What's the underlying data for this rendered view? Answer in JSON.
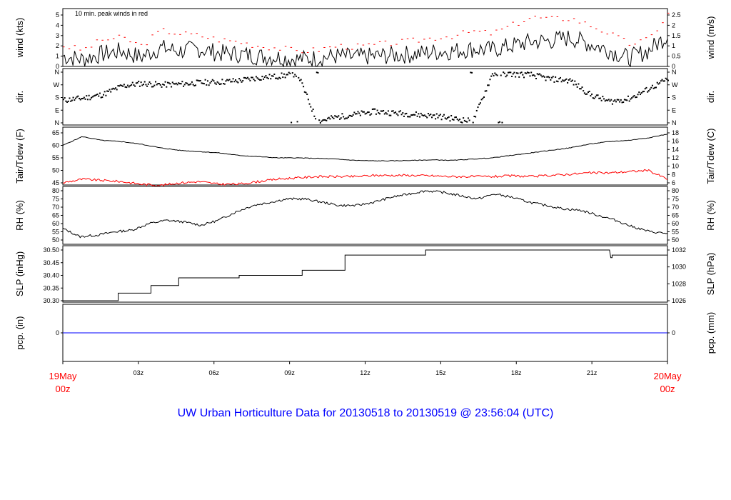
{
  "title": "UW Urban Horticulture Data for 20130518  to  20130519 @ 23:56:04  (UTC)",
  "colors": {
    "title": "#0000ff",
    "series_secondary": "#ff0000",
    "series_primary": "#000000",
    "precip": "#0000ff",
    "xend": "#ff0000"
  },
  "x_axis": {
    "ticks": [
      "03z",
      "06z",
      "09z",
      "12z",
      "15z",
      "18z",
      "21z"
    ],
    "start": {
      "line1": "19May",
      "line2": "00z"
    },
    "end": {
      "line1": "20May",
      "line2": "00z"
    }
  },
  "chart_data": [
    {
      "type": "line",
      "ylabel": "wind (kts)",
      "y2label": "wind (m/s)",
      "annotation": "10 min. peak winds in red",
      "ylim": [
        0,
        5.7
      ],
      "yticks": [
        "0",
        "1",
        "2",
        "3",
        "4",
        "5"
      ],
      "y2ticks": [
        "0",
        "0.5",
        "1",
        "1.5",
        "2",
        "2.5"
      ],
      "series": [
        {
          "values": [
            1.0,
            0.7,
            1.2,
            1.5,
            0.9,
            1.8,
            1.5,
            1.7,
            1.3,
            1.2,
            1.0,
            0.9,
            0.7,
            0.8,
            1.0,
            0.9,
            1.0,
            1.1,
            1.2,
            1.4,
            1.5,
            1.7,
            1.6,
            2.0,
            2.4,
            2.5,
            2.8,
            2.2,
            1.6,
            0.8,
            1.5,
            3.0
          ]
        },
        {
          "values": [
            2.0,
            1.6,
            2.6,
            2.8,
            2.0,
            3.5,
            3.2,
            3.0,
            2.6,
            2.4,
            2.0,
            1.8,
            1.5,
            1.6,
            2.0,
            1.9,
            2.1,
            2.3,
            2.5,
            2.8,
            3.0,
            3.4,
            3.2,
            4.0,
            4.8,
            4.6,
            4.7,
            4.0,
            3.2,
            2.2,
            2.6,
            5.1
          ]
        }
      ]
    },
    {
      "type": "scatter",
      "ylabel": "dir.",
      "y2label": "dir.",
      "yticks": [
        "N",
        "E",
        "S",
        "W",
        "N"
      ],
      "ylim": [
        0,
        360
      ],
      "values": [
        160,
        175,
        200,
        260,
        280,
        270,
        275,
        285,
        290,
        300,
        320,
        330,
        350,
        10,
        40,
        60,
        80,
        70,
        60,
        50,
        30,
        10,
        350,
        345,
        340,
        310,
        300,
        200,
        150,
        170,
        240,
        310
      ]
    },
    {
      "type": "line",
      "ylabel": "Tair/Tdew (F)",
      "y2label": "Tair/Tdew (C)",
      "ylim": [
        42,
        66
      ],
      "yticks": [
        "45",
        "50",
        "55",
        "60",
        "65"
      ],
      "y2ticks": [
        "6",
        "8",
        "10",
        "12",
        "14",
        "16",
        "18"
      ],
      "series": [
        {
          "values": [
            60.0,
            63.5,
            62.0,
            61.5,
            60.5,
            59.0,
            58.0,
            57.5,
            57.0,
            56.0,
            55.5,
            55.0,
            55.0,
            54.8,
            54.5,
            54.0,
            53.8,
            53.8,
            54.0,
            54.2,
            54.0,
            54.5,
            55.0,
            56.0,
            57.0,
            58.0,
            59.0,
            60.5,
            61.5,
            62.0,
            63.0,
            64.5
          ]
        },
        {
          "values": [
            45.0,
            46.5,
            46.0,
            45.5,
            44.5,
            44.0,
            45.0,
            45.5,
            44.5,
            44.5,
            45.5,
            46.5,
            47.0,
            47.5,
            47.5,
            47.5,
            48.0,
            48.0,
            48.0,
            47.8,
            47.5,
            47.5,
            47.5,
            47.8,
            47.5,
            48.0,
            48.5,
            49.0,
            49.0,
            49.5,
            50.0,
            46.5
          ]
        }
      ]
    },
    {
      "type": "line",
      "ylabel": "RH (%)",
      "y2label": "RH (%)",
      "ylim": [
        48,
        81
      ],
      "yticks": [
        "50",
        "55",
        "60",
        "65",
        "70",
        "75",
        "80"
      ],
      "y2ticks": [
        "50",
        "55",
        "60",
        "65",
        "70",
        "75",
        "80"
      ],
      "values": [
        57,
        52,
        53,
        55,
        56,
        60,
        62,
        61,
        59,
        62,
        67,
        71,
        73,
        75,
        75,
        73,
        71,
        71,
        73,
        76,
        78,
        80,
        79,
        77,
        75,
        78,
        76,
        73,
        71,
        69,
        68,
        65,
        62,
        58,
        55,
        54
      ]
    },
    {
      "type": "line",
      "ylabel": "SLP (inHg)",
      "y2label": "SLP (hPa)",
      "ylim": [
        30.295,
        30.505
      ],
      "yticks": [
        "30.30",
        "30.35",
        "30.40",
        "30.45",
        "30.50"
      ],
      "y2ticks": [
        "1026",
        "1028",
        "1030",
        "1032"
      ],
      "x_hours": [
        0,
        2.2,
        2.2,
        3.5,
        3.5,
        4.6,
        4.6,
        7.0,
        7.0,
        9.5,
        9.5,
        11.2,
        11.2,
        14.4,
        14.4,
        21.7,
        21.75,
        21.8,
        21.8,
        24
      ],
      "values": [
        30.3,
        30.3,
        30.33,
        30.33,
        30.36,
        30.36,
        30.39,
        30.39,
        30.4,
        30.4,
        30.42,
        30.42,
        30.48,
        30.48,
        30.5,
        30.5,
        30.47,
        30.47,
        30.48,
        30.48
      ]
    },
    {
      "type": "line",
      "ylabel": "pcp. (in)",
      "y2label": "pcp. (mm)",
      "yticks": [
        "0"
      ],
      "y2ticks": [
        "0"
      ],
      "values": [
        0,
        0
      ]
    }
  ]
}
